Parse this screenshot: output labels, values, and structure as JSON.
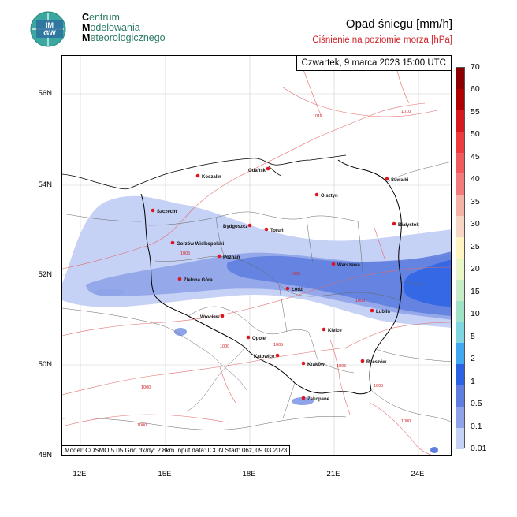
{
  "organization": {
    "logo_text": "IM-GW",
    "name_lines": [
      {
        "initial": "C",
        "rest": "entrum"
      },
      {
        "initial": "M",
        "rest": "odelowania"
      },
      {
        "initial": "M",
        "rest": "eteorologicznego"
      }
    ]
  },
  "title": "Opad śniegu [mm/h]",
  "subtitle": "Ciśnienie na poziomie morza [hPa]",
  "valid_time": "Czwartek, 9 marca 2023 15:00 UTC",
  "footer_text": "Model: COSMO 5.05  Grid dx/dy: 2.8km  Input data: ICON  Start: 06z, 09.03.2023",
  "axes": {
    "latitude_ticks": [
      "56N",
      "54N",
      "52N",
      "50N",
      "48N"
    ],
    "longitude_ticks": [
      "12E",
      "15E",
      "18E",
      "21E",
      "24E"
    ]
  },
  "colorbar": {
    "labels": [
      "70",
      "60",
      "55",
      "50",
      "45",
      "40",
      "35",
      "30",
      "25",
      "20",
      "15",
      "10",
      "5",
      "2",
      "1",
      "0.5",
      "0.1",
      "0.01"
    ],
    "colors": [
      "#8b0000",
      "#b00000",
      "#d71920",
      "#ee3b3b",
      "#f25b5b",
      "#f47b7b",
      "#f5b2a6",
      "#f7d6c6",
      "#fff5c2",
      "#e9f7c8",
      "#c9ecc8",
      "#9fe2c6",
      "#7fd6e0",
      "#41a9f0",
      "#2c63e5",
      "#5f7fe0",
      "#8fa3e8",
      "#c5d1f5"
    ]
  },
  "cities": [
    {
      "name": "Gdańsk"
    },
    {
      "name": "Koszalin"
    },
    {
      "name": "Suwałki"
    },
    {
      "name": "Olsztyn"
    },
    {
      "name": "Szczecin"
    },
    {
      "name": "Bydgoszcz"
    },
    {
      "name": "Toruń"
    },
    {
      "name": "Białystok"
    },
    {
      "name": "Gorzów Wielkopolski"
    },
    {
      "name": "Poznań"
    },
    {
      "name": "Warszawa"
    },
    {
      "name": "Zielona Góra"
    },
    {
      "name": "Łódź"
    },
    {
      "name": "Lublin"
    },
    {
      "name": "Wrocław"
    },
    {
      "name": "Kielce"
    },
    {
      "name": "Opole"
    },
    {
      "name": "Katowice"
    },
    {
      "name": "Kraków"
    },
    {
      "name": "Rzeszów"
    },
    {
      "name": "Zakopane"
    }
  ],
  "isobar_labels": [
    "1010",
    "1010",
    "1005",
    "1005",
    "1000",
    "1000",
    "1000",
    "1005",
    "1005",
    "1005",
    "1000",
    "1000"
  ]
}
